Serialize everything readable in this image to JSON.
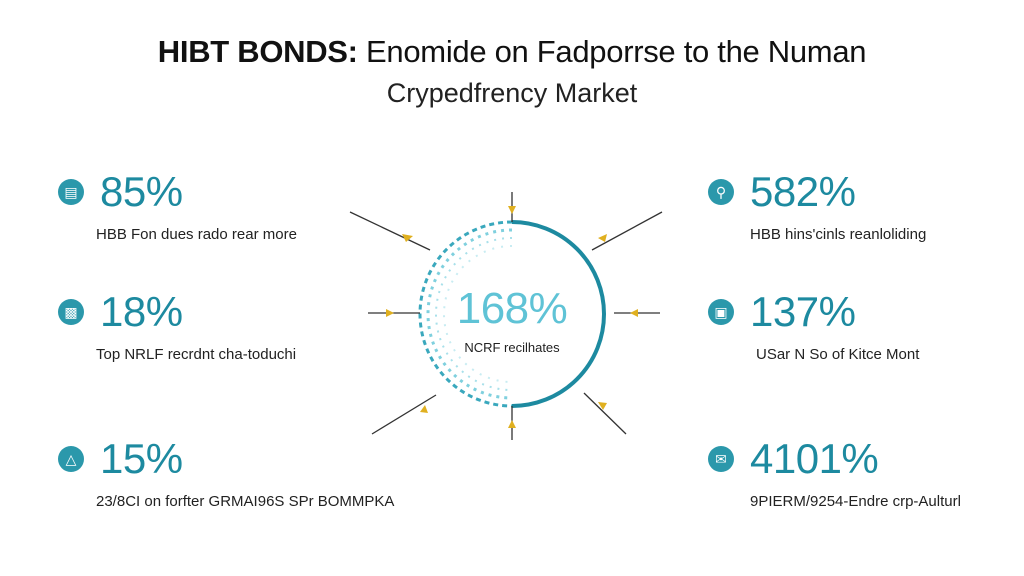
{
  "title": {
    "line1_bold": "HIBT BONDS:",
    "line1_rest": " Enomide on Fadporrse to the Numan",
    "line2": "Crypedfrency Market"
  },
  "center": {
    "value": "168%",
    "caption": "NCRF recilhates"
  },
  "stats": [
    {
      "value": "85%",
      "caption": "HBB Fon dues rado rear more",
      "icon": "chart-icon"
    },
    {
      "value": "18%",
      "caption": "Top NRLF recrdnt cha-toduchi",
      "icon": "laptop-icon"
    },
    {
      "value": "15%",
      "caption": "23/8CI on forfter GRMAI96S SPr BOMMPKA",
      "icon": "flask-icon"
    },
    {
      "value": "582%",
      "caption": "HBB hins'cinls reanloliding",
      "icon": "search-icon"
    },
    {
      "value": "137%",
      "caption": "USar N So of Kitce Mont",
      "icon": "lock-icon"
    },
    {
      "value": "4101%",
      "caption": "9PIERM/9254-Endre crp-Aulturl",
      "icon": "message-icon"
    }
  ],
  "colors": {
    "accent": "#1d8aa0",
    "icon_bg": "#2b98ab",
    "center_text": "#5fc3d6",
    "arrow": "#e0b020",
    "connector": "#333333"
  }
}
